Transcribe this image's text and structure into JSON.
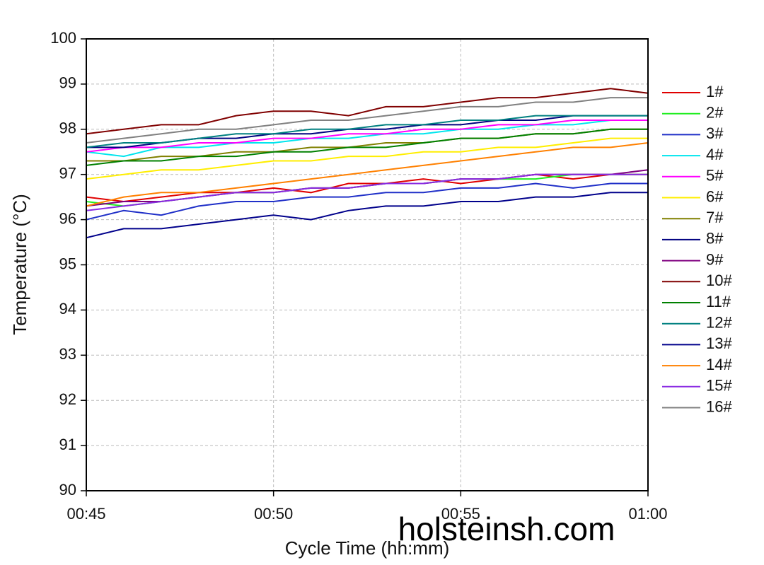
{
  "chart_data": {
    "type": "line",
    "x_label": "Cycle Time (hh:mm)",
    "y_label": "Temperature (°C)",
    "watermark": "holsteinsh.com",
    "x": [
      45,
      46,
      47,
      48,
      49,
      50,
      51,
      52,
      53,
      54,
      55,
      56,
      57,
      58,
      59,
      60
    ],
    "xlim": [
      45,
      60
    ],
    "xticks": [
      {
        "value": 45,
        "label": "00:45"
      },
      {
        "value": 50,
        "label": "00:50"
      },
      {
        "value": 55,
        "label": "00:55"
      },
      {
        "value": 60,
        "label": "01:00"
      }
    ],
    "ylim": [
      90,
      100
    ],
    "yticks": [
      90,
      91,
      92,
      93,
      94,
      95,
      96,
      97,
      98,
      99,
      100
    ],
    "grid": true,
    "legend": "right",
    "series": [
      {
        "name": "1#",
        "color": "#e00000",
        "values": [
          96.5,
          96.4,
          96.5,
          96.6,
          96.6,
          96.7,
          96.6,
          96.8,
          96.8,
          96.9,
          96.8,
          96.9,
          97.0,
          96.9,
          97.0,
          97.0
        ]
      },
      {
        "name": "2#",
        "color": "#22ee22",
        "values": [
          96.4,
          96.3,
          96.4,
          96.5,
          96.6,
          96.6,
          96.7,
          96.7,
          96.8,
          96.8,
          96.9,
          96.9,
          96.9,
          97.0,
          97.0,
          97.0
        ]
      },
      {
        "name": "3#",
        "color": "#2030c8",
        "values": [
          96.0,
          96.2,
          96.1,
          96.3,
          96.4,
          96.4,
          96.5,
          96.5,
          96.6,
          96.6,
          96.7,
          96.7,
          96.8,
          96.7,
          96.8,
          96.8
        ]
      },
      {
        "name": "4#",
        "color": "#00e5ee",
        "values": [
          97.5,
          97.4,
          97.6,
          97.6,
          97.7,
          97.7,
          97.8,
          97.8,
          97.9,
          97.9,
          98.0,
          98.0,
          98.1,
          98.1,
          98.2,
          98.2
        ]
      },
      {
        "name": "5#",
        "color": "#ff00ff",
        "values": [
          97.5,
          97.6,
          97.6,
          97.7,
          97.7,
          97.8,
          97.8,
          97.9,
          97.9,
          98.0,
          98.0,
          98.1,
          98.1,
          98.2,
          98.2,
          98.2
        ]
      },
      {
        "name": "6#",
        "color": "#ffee00",
        "values": [
          96.9,
          97.0,
          97.1,
          97.1,
          97.2,
          97.3,
          97.3,
          97.4,
          97.4,
          97.5,
          97.5,
          97.6,
          97.6,
          97.7,
          97.8,
          97.8
        ]
      },
      {
        "name": "7#",
        "color": "#808000",
        "values": [
          97.3,
          97.3,
          97.4,
          97.4,
          97.5,
          97.5,
          97.6,
          97.6,
          97.7,
          97.7,
          97.8,
          97.8,
          97.9,
          97.9,
          98.0,
          98.0
        ]
      },
      {
        "name": "8#",
        "color": "#000080",
        "values": [
          97.6,
          97.6,
          97.7,
          97.8,
          97.8,
          97.9,
          97.9,
          98.0,
          98.0,
          98.1,
          98.1,
          98.2,
          98.2,
          98.3,
          98.3,
          98.3
        ]
      },
      {
        "name": "9#",
        "color": "#800080",
        "values": [
          96.3,
          96.4,
          96.4,
          96.5,
          96.6,
          96.6,
          96.7,
          96.7,
          96.8,
          96.8,
          96.9,
          96.9,
          97.0,
          97.0,
          97.0,
          97.1
        ]
      },
      {
        "name": "10#",
        "color": "#800000",
        "values": [
          97.9,
          98.0,
          98.1,
          98.1,
          98.3,
          98.4,
          98.4,
          98.3,
          98.5,
          98.5,
          98.6,
          98.7,
          98.7,
          98.8,
          98.9,
          98.8
        ]
      },
      {
        "name": "11#",
        "color": "#008000",
        "values": [
          97.2,
          97.3,
          97.3,
          97.4,
          97.4,
          97.5,
          97.5,
          97.6,
          97.6,
          97.7,
          97.8,
          97.8,
          97.9,
          97.9,
          98.0,
          98.0
        ]
      },
      {
        "name": "12#",
        "color": "#008080",
        "values": [
          97.6,
          97.7,
          97.7,
          97.8,
          97.9,
          97.9,
          98.0,
          98.0,
          98.1,
          98.1,
          98.2,
          98.2,
          98.3,
          98.3,
          98.3,
          98.3
        ]
      },
      {
        "name": "13#",
        "color": "#00008b",
        "values": [
          95.6,
          95.8,
          95.8,
          95.9,
          96.0,
          96.1,
          96.0,
          96.2,
          96.3,
          96.3,
          96.4,
          96.4,
          96.5,
          96.5,
          96.6,
          96.6
        ]
      },
      {
        "name": "14#",
        "color": "#ff8000",
        "values": [
          96.3,
          96.5,
          96.6,
          96.6,
          96.7,
          96.8,
          96.9,
          97.0,
          97.1,
          97.2,
          97.3,
          97.4,
          97.5,
          97.6,
          97.6,
          97.7
        ]
      },
      {
        "name": "15#",
        "color": "#8a2be2",
        "values": [
          96.2,
          96.3,
          96.4,
          96.5,
          96.6,
          96.6,
          96.7,
          96.7,
          96.8,
          96.8,
          96.9,
          96.9,
          97.0,
          97.0,
          97.0,
          97.0
        ]
      },
      {
        "name": "16#",
        "color": "#808080",
        "values": [
          97.7,
          97.8,
          97.9,
          98.0,
          98.0,
          98.1,
          98.2,
          98.2,
          98.3,
          98.4,
          98.5,
          98.5,
          98.6,
          98.6,
          98.7,
          98.7
        ]
      }
    ]
  }
}
